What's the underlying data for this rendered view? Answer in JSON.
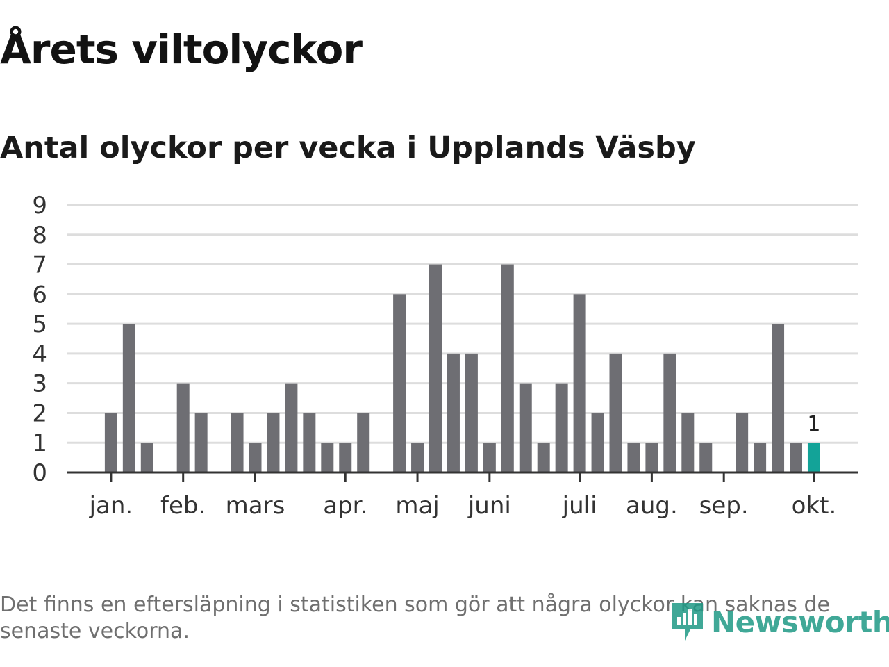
{
  "title": "Årets viltolyckor",
  "subtitle": "Antal olyckor per vecka i Upplands Väsby",
  "footnote": "Det finns en eftersläpning i statistiken som gör att några olyckor kan saknas de senaste veckorna.",
  "logo": {
    "name": "newsworthy-logo",
    "text": "Newsworthy"
  },
  "colors": {
    "bar": "#6e6e73",
    "highlight": "#13a398",
    "grid": "#dddddd",
    "axis": "#333333",
    "logo": "#1f9a86"
  },
  "chart_data": {
    "type": "bar",
    "title": "Antal olyckor per vecka i Upplands Väsby",
    "xlabel": "",
    "ylabel": "",
    "ylim": [
      0,
      9
    ],
    "yticks": [
      0,
      1,
      2,
      3,
      4,
      5,
      6,
      7,
      8,
      9
    ],
    "grid": true,
    "weeks": [
      1,
      2,
      3,
      4,
      5,
      6,
      7,
      8,
      9,
      10,
      11,
      12,
      13,
      14,
      15,
      16,
      17,
      18,
      19,
      20,
      21,
      22,
      23,
      24,
      25,
      26,
      27,
      28,
      29,
      30,
      31,
      32,
      33,
      34,
      35,
      36,
      37,
      38,
      39,
      40,
      41,
      42
    ],
    "values": [
      0,
      0,
      2,
      5,
      1,
      0,
      3,
      2,
      0,
      2,
      1,
      2,
      3,
      2,
      1,
      1,
      2,
      0,
      6,
      1,
      7,
      4,
      4,
      1,
      7,
      3,
      1,
      3,
      6,
      2,
      4,
      1,
      1,
      4,
      2,
      1,
      0,
      2,
      1,
      5,
      1,
      1
    ],
    "highlight_index": 41,
    "highlight_label": "1",
    "month_labels": [
      {
        "label": "jan.",
        "week": 3
      },
      {
        "label": "feb.",
        "week": 7
      },
      {
        "label": "mars",
        "week": 11
      },
      {
        "label": "apr.",
        "week": 16
      },
      {
        "label": "maj",
        "week": 20
      },
      {
        "label": "juni",
        "week": 24
      },
      {
        "label": "juli",
        "week": 29
      },
      {
        "label": "aug.",
        "week": 33
      },
      {
        "label": "sep.",
        "week": 37
      },
      {
        "label": "okt.",
        "week": 42
      }
    ]
  }
}
